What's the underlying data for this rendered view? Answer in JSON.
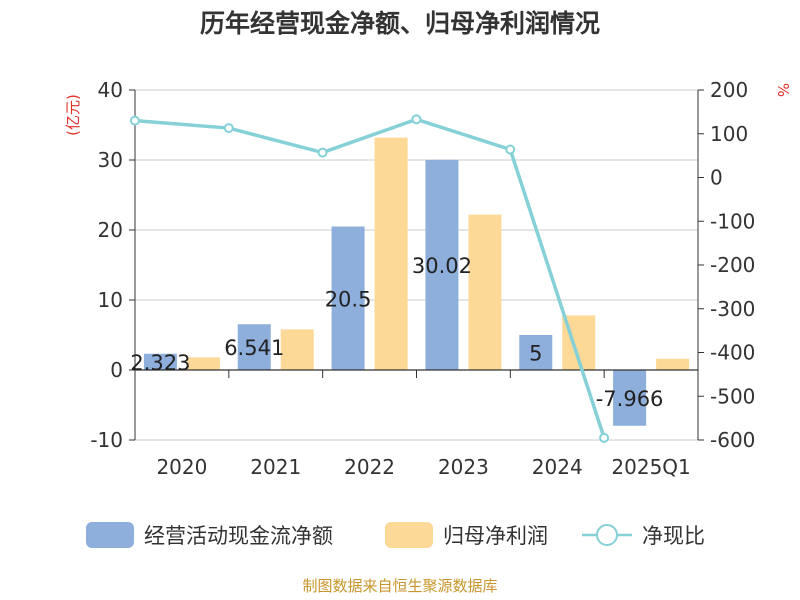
{
  "chart_data": {
    "type": "bar",
    "title": "历年经营现金净额、归母净利润情况",
    "categories": [
      "2020",
      "2021",
      "2022",
      "2023",
      "2024",
      "2025Q1"
    ],
    "series": [
      {
        "name": "经营活动现金流净额",
        "kind": "bar",
        "axis": "left",
        "color": "#8eaedb",
        "values": [
          2.323,
          6.541,
          20.5,
          30.02,
          5,
          -7.966
        ],
        "labels": [
          "2.323",
          "6.541",
          "20.5",
          "30.02",
          "5",
          "-7.966"
        ]
      },
      {
        "name": "归母净利润",
        "kind": "bar",
        "axis": "left",
        "color": "#fdd998",
        "values": [
          1.8,
          5.8,
          33.2,
          22.2,
          7.8,
          1.6
        ]
      },
      {
        "name": "净现比",
        "kind": "line",
        "axis": "right",
        "color": "#86d1d7",
        "values": [
          130,
          113,
          57,
          133,
          64,
          -595
        ]
      }
    ],
    "y_left": {
      "label": "(亿元)",
      "min": -10,
      "max": 40,
      "ticks": [
        40,
        30,
        20,
        10,
        0,
        -10
      ]
    },
    "y_right": {
      "label": "%",
      "min": -600,
      "max": 200,
      "ticks": [
        200,
        100,
        0,
        -100,
        -200,
        -300,
        -400,
        -500,
        -600
      ]
    },
    "grid": true,
    "legend_position": "bottom"
  },
  "source": "制图数据来自恒生聚源数据库"
}
